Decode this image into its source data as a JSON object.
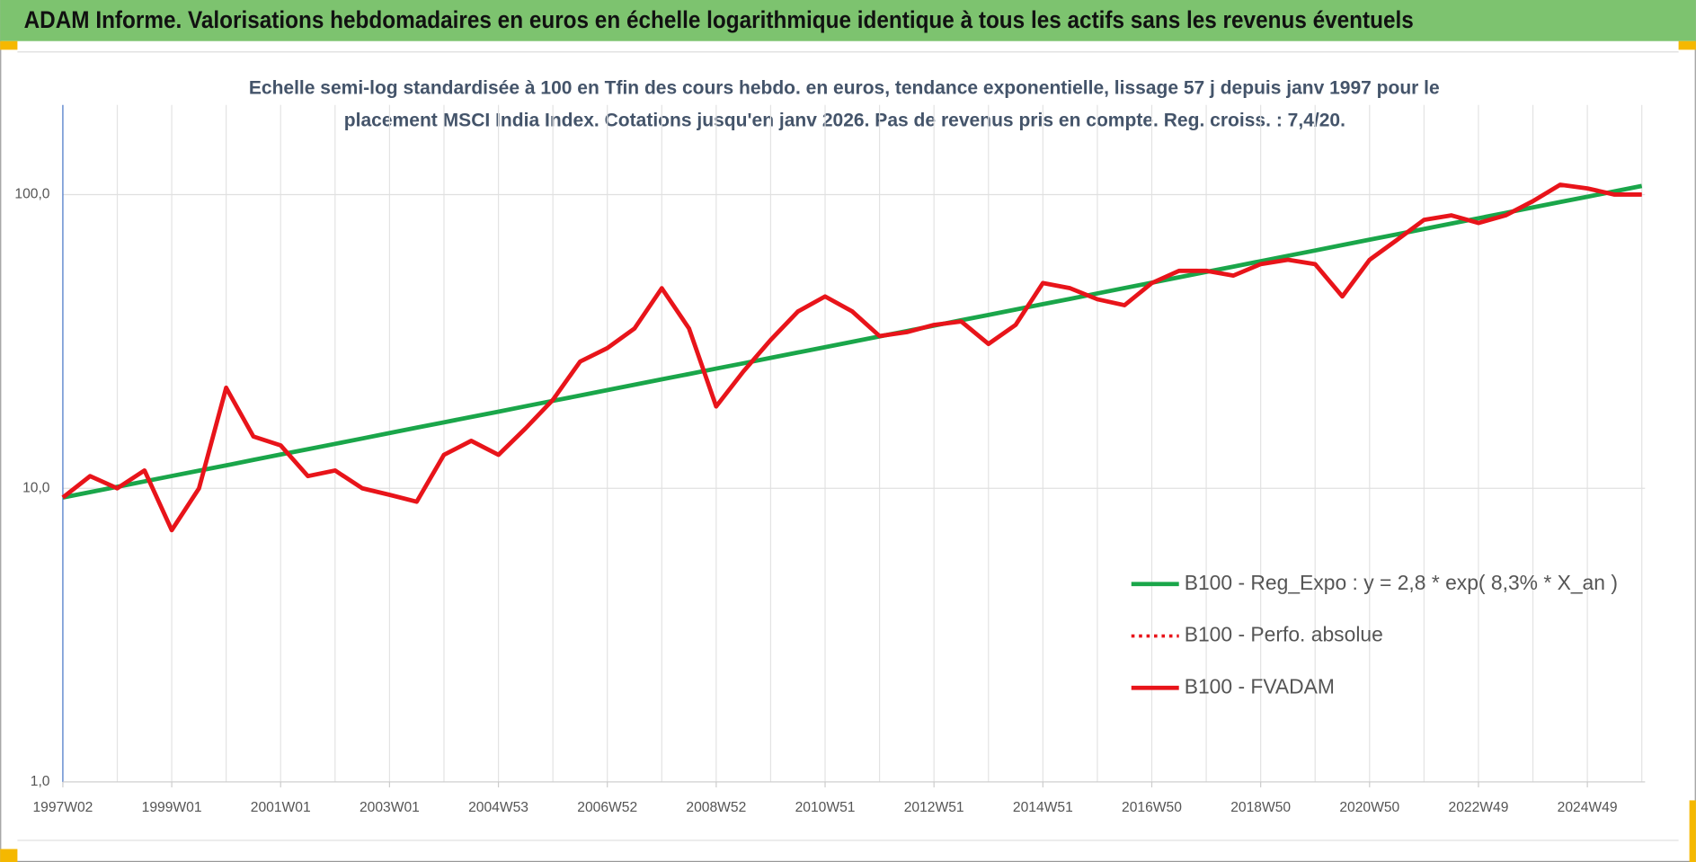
{
  "chart_data": {
    "type": "line",
    "header": "ADAM Informe. Valorisations hebdomadaires en euros en échelle logarithmique identique à tous les actifs sans les revenus éventuels",
    "subtitle": [
      "Echelle semi-log standardisée à 100 en Tfin des cours hebdo. en euros, tendance exponentielle, lissage 57 j depuis janv 1997 pour le",
      "placement MSCI India Index. Cotations jusqu'en janv 2026. Pas de revenus pris en compte. Reg. croiss. : 7,4/20."
    ],
    "log_scale": true,
    "grid": true,
    "legend": "right",
    "ylim": [
      1,
      202
    ],
    "yticks": [
      {
        "value": 1,
        "label": "1,0"
      },
      {
        "value": 10,
        "label": "10,0"
      },
      {
        "value": 100,
        "label": "100,0"
      }
    ],
    "categories": [
      "1997W02",
      null,
      null,
      null,
      "1999W01",
      null,
      null,
      null,
      "2001W01",
      null,
      null,
      null,
      "2003W01",
      null,
      null,
      null,
      "2004W53",
      null,
      null,
      null,
      "2006W52",
      null,
      null,
      null,
      "2008W52",
      null,
      null,
      null,
      "2010W51",
      null,
      null,
      null,
      "2012W51",
      null,
      null,
      null,
      "2014W51",
      null,
      null,
      null,
      "2016W50",
      null,
      null,
      null,
      "2018W50",
      null,
      null,
      null,
      "2020W50",
      null,
      null,
      null,
      "2022W49",
      null,
      null,
      null,
      "2024W49",
      null,
      null
    ],
    "series": [
      {
        "name": "B100 - Reg_Expo : y = 2,8 * exp( 8,3% *  X_an )",
        "color": "#1aa64a",
        "style": "solid",
        "values": [
          9.3,
          9.7,
          10.12,
          10.55,
          11.01,
          11.48,
          11.97,
          12.49,
          13.03,
          13.59,
          14.17,
          14.78,
          15.42,
          16.08,
          16.77,
          17.49,
          18.24,
          19.03,
          19.85,
          20.7,
          21.59,
          22.52,
          23.49,
          24.5,
          25.55,
          26.65,
          27.8,
          28.99,
          30.24,
          31.54,
          32.9,
          34.31,
          35.79,
          37.33,
          38.93,
          40.61,
          42.35,
          44.18,
          46.08,
          48.06,
          50.13,
          52.28,
          54.53,
          56.88,
          59.33,
          61.88,
          64.54,
          67.32,
          70.21,
          73.23,
          76.38,
          79.67,
          83.09,
          86.67,
          90.4,
          94.29,
          98.34,
          102.6,
          107
        ]
      },
      {
        "name": "B100 - Perfo. absolue",
        "color": "#e8141a",
        "style": "dotted",
        "values": [
          9.3,
          11,
          10,
          11.5,
          7.2,
          10,
          22,
          15,
          14,
          11,
          11.5,
          10,
          9.5,
          9,
          13,
          14.5,
          13,
          16,
          20,
          27,
          30,
          35,
          48,
          35,
          19,
          25,
          32,
          40,
          45,
          40,
          33,
          34,
          36,
          37,
          31,
          36,
          50,
          48,
          44,
          42,
          50,
          55,
          55,
          53,
          58,
          60,
          58,
          45,
          60,
          70,
          82,
          85,
          80,
          85,
          95,
          108,
          105,
          100,
          100
        ]
      },
      {
        "name": "B100 - FVADAM",
        "color": "#e8141a",
        "style": "solid",
        "values": [
          9.3,
          11,
          10,
          11.5,
          7.2,
          10,
          22,
          15,
          14,
          11,
          11.5,
          10,
          9.5,
          9,
          13,
          14.5,
          13,
          16,
          20,
          27,
          30,
          35,
          48,
          35,
          19,
          25,
          32,
          40,
          45,
          40,
          33,
          34,
          36,
          37,
          31,
          36,
          50,
          48,
          44,
          42,
          50,
          55,
          55,
          53,
          58,
          60,
          58,
          45,
          60,
          70,
          82,
          85,
          80,
          85,
          95,
          108,
          105,
          100,
          100
        ]
      }
    ]
  }
}
